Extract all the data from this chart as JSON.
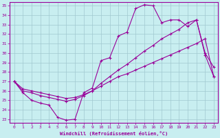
{
  "xlabel": "Windchill (Refroidissement éolien,°C)",
  "background_color": "#c8eef0",
  "grid_color": "#a0c8d0",
  "line_color": "#990099",
  "xlim": [
    -0.5,
    23.5
  ],
  "ylim": [
    22.6,
    35.4
  ],
  "yticks": [
    23,
    24,
    25,
    26,
    27,
    28,
    29,
    30,
    31,
    32,
    33,
    34,
    35
  ],
  "xticks": [
    0,
    1,
    2,
    3,
    4,
    5,
    6,
    7,
    8,
    9,
    10,
    11,
    12,
    13,
    14,
    15,
    16,
    17,
    18,
    19,
    20,
    21,
    22,
    23
  ],
  "line1_x": [
    0,
    1,
    2,
    3,
    4,
    5,
    6,
    7,
    8,
    9,
    10,
    11,
    12,
    13,
    14,
    15,
    16,
    17,
    18,
    19,
    20,
    21,
    22,
    23
  ],
  "line1_y": [
    27.0,
    25.8,
    25.0,
    24.7,
    24.5,
    23.2,
    22.9,
    23.0,
    25.8,
    26.3,
    29.2,
    29.5,
    31.8,
    32.2,
    34.7,
    35.1,
    35.0,
    33.2,
    33.5,
    33.5,
    32.8,
    33.5,
    30.0,
    28.5
  ],
  "line2_x": [
    0,
    1,
    2,
    3,
    4,
    5,
    6,
    7,
    8,
    9,
    10,
    11,
    12,
    13,
    14,
    15,
    16,
    17,
    18,
    19,
    20,
    21,
    22,
    23
  ],
  "line2_y": [
    27.0,
    26.0,
    25.8,
    25.5,
    25.3,
    25.1,
    24.9,
    25.1,
    25.5,
    26.0,
    26.8,
    27.5,
    28.2,
    28.8,
    29.5,
    30.2,
    30.8,
    31.5,
    32.0,
    32.5,
    33.2,
    33.5,
    29.8,
    27.5
  ],
  "line3_x": [
    0,
    1,
    2,
    3,
    4,
    5,
    6,
    7,
    8,
    9,
    10,
    11,
    12,
    13,
    14,
    15,
    16,
    17,
    18,
    19,
    20,
    21,
    22,
    23
  ],
  "line3_y": [
    27.0,
    26.2,
    26.0,
    25.8,
    25.6,
    25.4,
    25.2,
    25.3,
    25.6,
    26.0,
    26.5,
    27.0,
    27.5,
    27.8,
    28.2,
    28.6,
    29.0,
    29.4,
    29.8,
    30.2,
    30.6,
    31.0,
    31.5,
    27.5
  ]
}
